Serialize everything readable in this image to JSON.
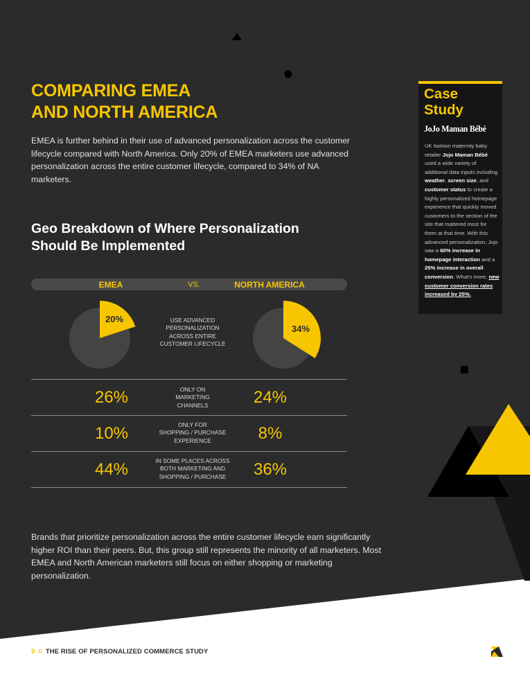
{
  "page": {
    "title_line1": "COMPARING EMEA",
    "title_line2": "AND NORTH AMERICA",
    "intro": "EMEA is further behind in their use of advanced personalization across the customer lifecycle compared with North America. Only 20% of EMEA marketers use advanced personalization across the entire customer lifecycle, compared to 34% of NA marketers.",
    "subtitle_line1": "Geo Breakdown of Where Personalization",
    "subtitle_line2": "Should Be Implemented",
    "bottom_text": "Brands that prioritize personalization across the entire customer lifecycle earn significantly higher ROI than their peers. But, this group still represents the minority of all marketers. Most EMEA and North American marketers still focus on either shopping or marketing personalization."
  },
  "colors": {
    "accent": "#f7c600",
    "dark_bg": "#2b2b2b",
    "pie_bg": "#444444"
  },
  "chart_data": {
    "type": "table",
    "columns": [
      "EMEA",
      "VS.",
      "NORTH AMERICA"
    ],
    "rows": [
      {
        "label": "USE ADVANCED PERSONALIZATION ACROSS ENTIRE CUSTOMER LIFECYCLE",
        "emea": 20,
        "na": 34,
        "emea_label": "20%",
        "na_label": "34%",
        "display": "pie"
      },
      {
        "label": "ONLY ON MARKETING CHANNELS",
        "emea": 26,
        "na": 24,
        "emea_label": "26%",
        "na_label": "24%",
        "display": "number"
      },
      {
        "label": "ONLY FOR SHOPPING / PURCHASE EXPERIENCE",
        "emea": 10,
        "na": 8,
        "emea_label": "10%",
        "na_label": "8%",
        "display": "number"
      },
      {
        "label": "IN SOME PLACES ACROSS BOTH MARKETING AND SHOPPING / PURCHASE",
        "emea": 44,
        "na": 36,
        "emea_label": "44%",
        "na_label": "36%",
        "display": "number"
      }
    ]
  },
  "labels": {
    "row1_l1": "USE ADVANCED",
    "row1_l2": "PERSONALIZATION",
    "row1_l3": "ACROSS ENTIRE",
    "row1_l4": "CUSTOMER LIFECYCLE",
    "row2_l1": "ONLY ON",
    "row2_l2": "MARKETING",
    "row2_l3": "CHANNELS",
    "row3_l1": "ONLY FOR",
    "row3_l2": "SHOPPING / PURCHASE",
    "row3_l3": "EXPERIENCE",
    "row4_l1": "IN SOME PLACES ACROSS",
    "row4_l2": "BOTH MARKETING AND",
    "row4_l3": "SHOPPING / PURCHASE"
  },
  "case_study": {
    "title_line1": "Case",
    "title_line2": "Study",
    "brand_logo": "JoJo Maman Bébé",
    "t1": "UK fashion maternity baby retailer ",
    "b1": "Jojo Maman Bébé",
    "t2": " used a wide variety of additional data inputs including ",
    "b2": "weather",
    "t3": ", ",
    "b3": "screen size",
    "t4": ", and ",
    "b4": "customer status",
    "t5": " to create a highly personalized homepage experience that quickly moved customers to the section of the site that mattered most for them at that time. With this advanced personalization, Jojo saw a ",
    "b5": "60% increase in homepage interaction",
    "t6": " and a ",
    "b6": "25% increase in overall conversion",
    "t7": ". What's more, ",
    "u1": "new customer conversion rates increased by 25%."
  },
  "footer": {
    "page_number": "9",
    "separator": "//",
    "title": "THE RISE OF PERSONALIZED COMMERCE STUDY"
  }
}
